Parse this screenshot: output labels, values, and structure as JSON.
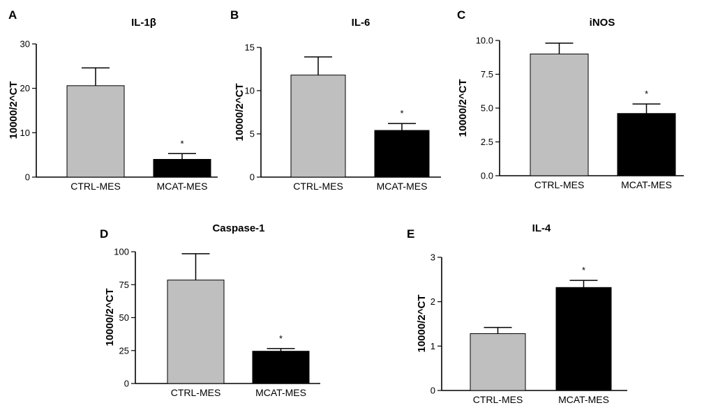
{
  "colors": {
    "ctrl": "#bfbfbf",
    "mcat": "#000000",
    "axis": "#000000"
  },
  "chart_data": [
    {
      "panel": "A",
      "type": "bar",
      "title": "IL-1β",
      "ylabel": "10000/2^CT",
      "categories": [
        "CTRL-MES",
        "MCAT-MES"
      ],
      "values": [
        20.6,
        4.0
      ],
      "errors": [
        4.0,
        1.3
      ],
      "significance": [
        "",
        "*"
      ],
      "ylim": [
        0,
        30
      ],
      "yticks": [
        "0",
        "10",
        "20",
        "30"
      ]
    },
    {
      "panel": "B",
      "type": "bar",
      "title": "IL-6",
      "ylabel": "10000/2^CT",
      "categories": [
        "CTRL-MES",
        "MCAT-MES"
      ],
      "values": [
        11.8,
        5.4
      ],
      "errors": [
        2.1,
        0.8
      ],
      "significance": [
        "",
        "*"
      ],
      "ylim": [
        0,
        15
      ],
      "yticks": [
        "0",
        "5",
        "10",
        "15"
      ]
    },
    {
      "panel": "C",
      "type": "bar",
      "title": "iNOS",
      "ylabel": "10000/2^CT",
      "categories": [
        "CTRL-MES",
        "MCAT-MES"
      ],
      "values": [
        9.0,
        4.6
      ],
      "errors": [
        0.8,
        0.7
      ],
      "significance": [
        "",
        "*"
      ],
      "ylim": [
        0,
        10
      ],
      "yticks": [
        "0.0",
        "2.5",
        "5.0",
        "7.5",
        "10.0"
      ]
    },
    {
      "panel": "D",
      "type": "bar",
      "title": "Caspase-1",
      "ylabel": "10000/2^CT",
      "categories": [
        "CTRL-MES",
        "MCAT-MES"
      ],
      "values": [
        78.5,
        24.5
      ],
      "errors": [
        20.0,
        2.0
      ],
      "significance": [
        "",
        "*"
      ],
      "ylim": [
        0,
        100
      ],
      "yticks": [
        "0",
        "25",
        "50",
        "75",
        "100"
      ]
    },
    {
      "panel": "E",
      "type": "bar",
      "title": "IL-4",
      "ylabel": "10000/2^CT",
      "categories": [
        "CTRL-MES",
        "MCAT-MES"
      ],
      "values": [
        1.28,
        2.32
      ],
      "errors": [
        0.14,
        0.16
      ],
      "significance": [
        "",
        "*"
      ],
      "ylim": [
        0,
        3
      ],
      "yticks": [
        "0",
        "1",
        "2",
        "3"
      ]
    }
  ]
}
